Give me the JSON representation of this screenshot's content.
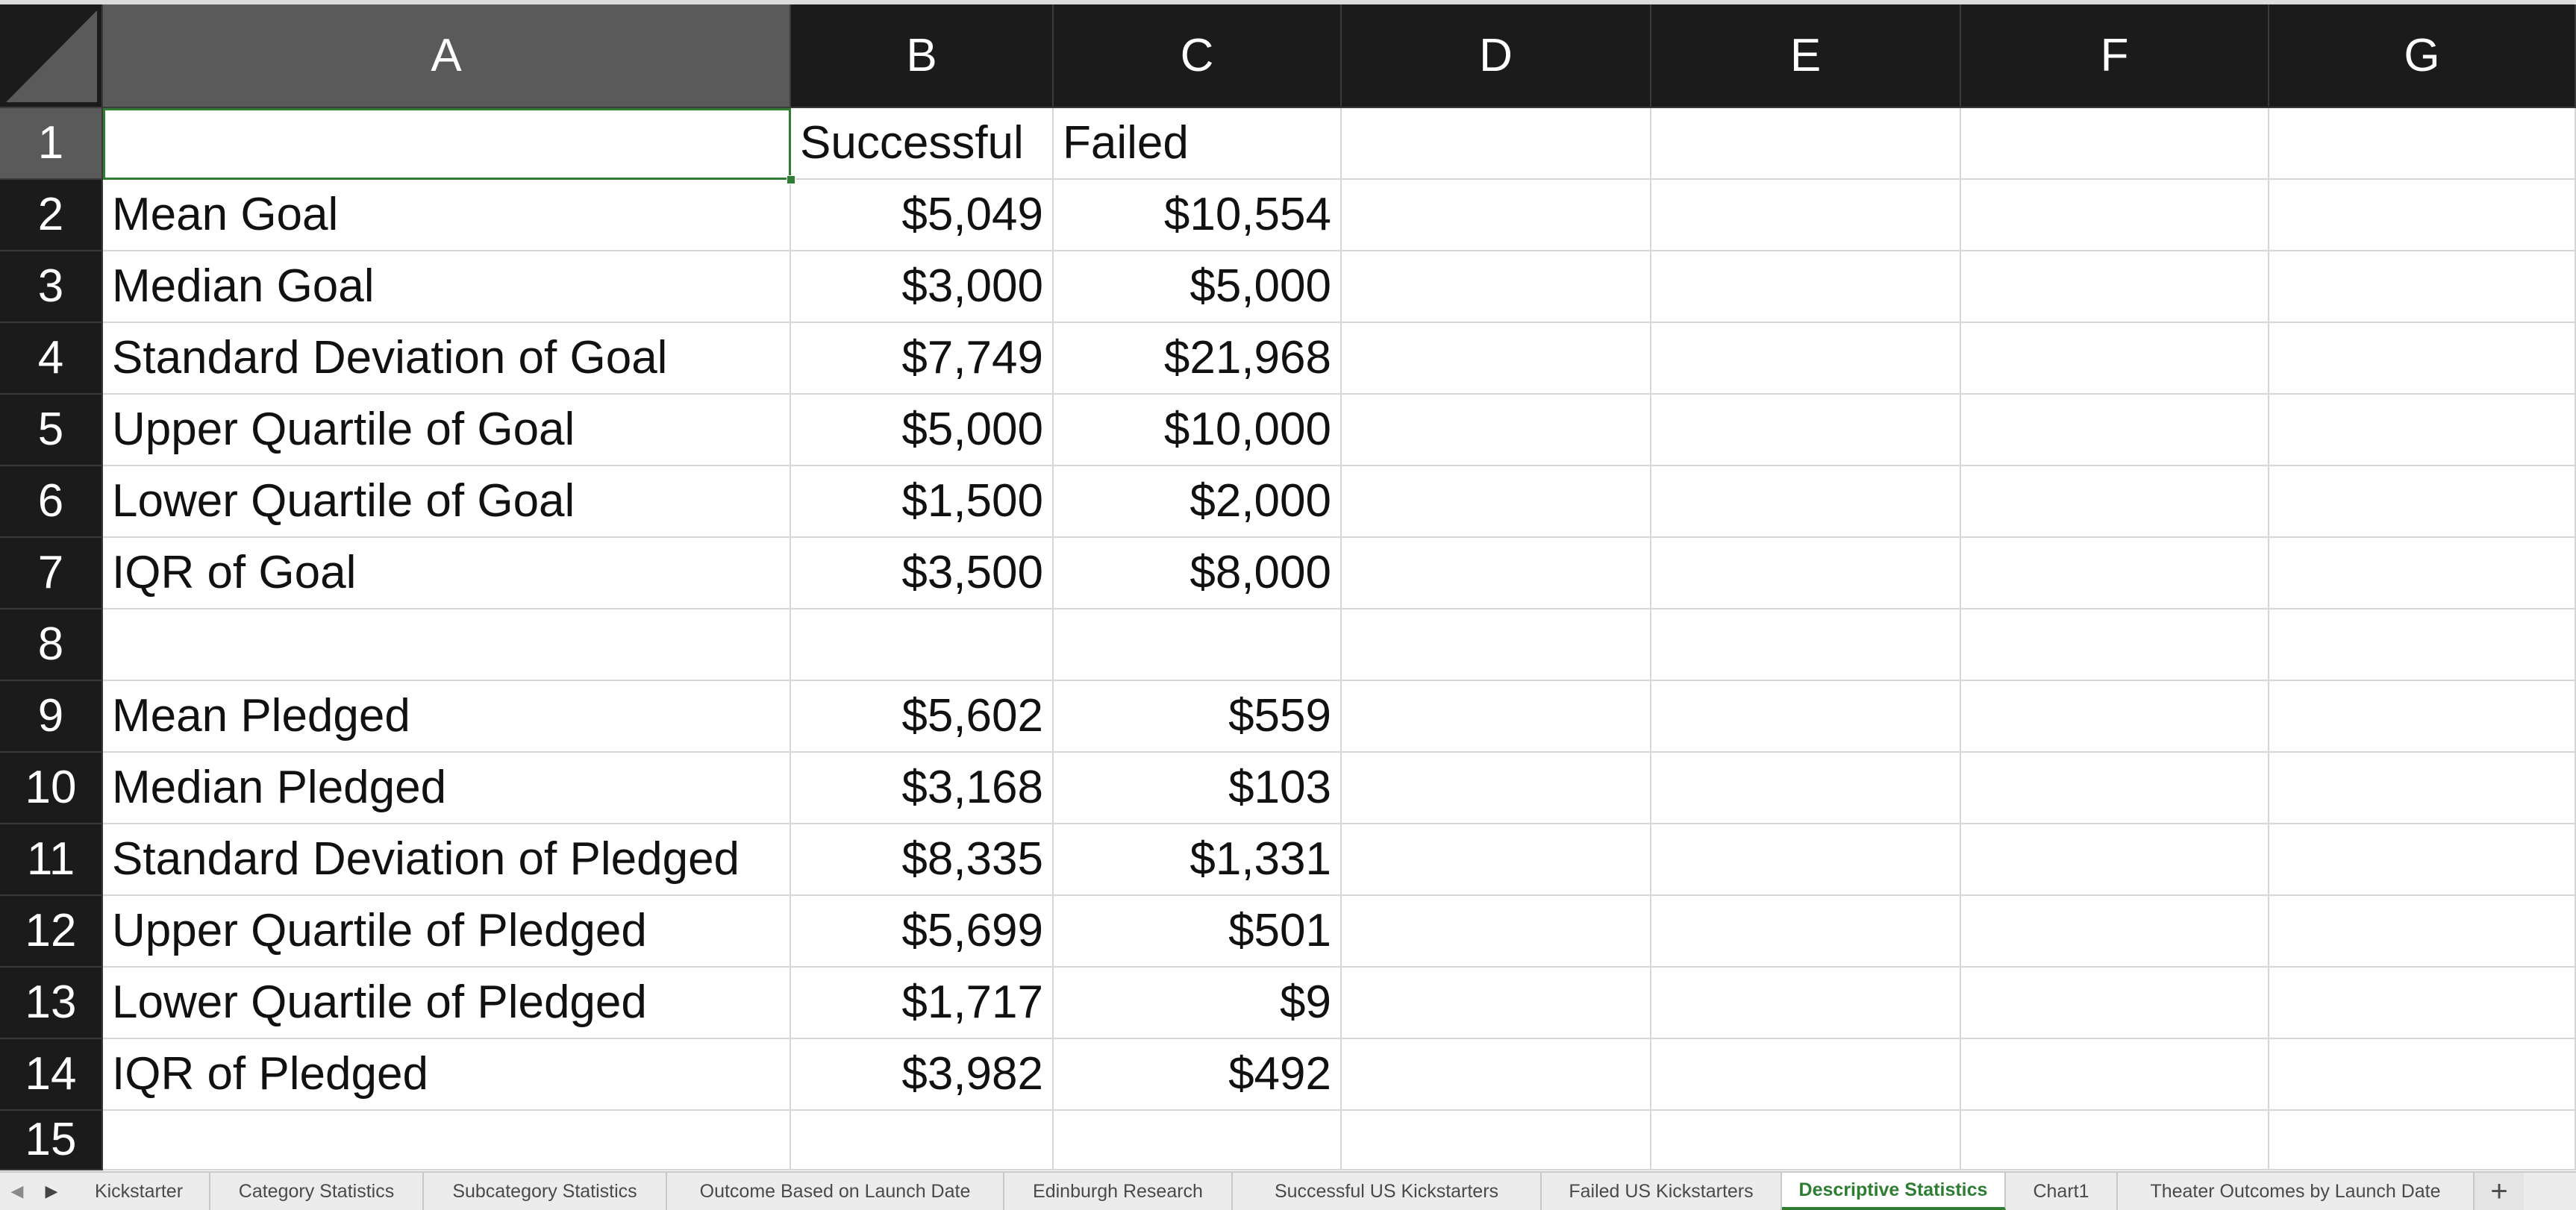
{
  "columns": [
    "A",
    "B",
    "C",
    "D",
    "E",
    "F",
    "G"
  ],
  "rows": [
    {
      "num": "1",
      "a": "",
      "b": "Successful",
      "c": "Failed"
    },
    {
      "num": "2",
      "a": "Mean Goal",
      "b": "$5,049",
      "c": "$10,554"
    },
    {
      "num": "3",
      "a": "Median Goal",
      "b": "$3,000",
      "c": "$5,000"
    },
    {
      "num": "4",
      "a": "Standard Deviation of Goal",
      "b": "$7,749",
      "c": "$21,968"
    },
    {
      "num": "5",
      "a": "Upper Quartile of Goal",
      "b": "$5,000",
      "c": "$10,000"
    },
    {
      "num": "6",
      "a": "Lower Quartile of Goal",
      "b": "$1,500",
      "c": "$2,000"
    },
    {
      "num": "7",
      "a": "IQR of Goal",
      "b": "$3,500",
      "c": "$8,000"
    },
    {
      "num": "8",
      "a": "",
      "b": "",
      "c": ""
    },
    {
      "num": "9",
      "a": "Mean Pledged",
      "b": "$5,602",
      "c": "$559"
    },
    {
      "num": "10",
      "a": "Median Pledged",
      "b": "$3,168",
      "c": "$103"
    },
    {
      "num": "11",
      "a": "Standard Deviation of Pledged",
      "b": "$8,335",
      "c": "$1,331"
    },
    {
      "num": "12",
      "a": "Upper Quartile of Pledged",
      "b": "$5,699",
      "c": "$501"
    },
    {
      "num": "13",
      "a": "Lower Quartile of Pledged",
      "b": "$1,717",
      "c": "$9"
    },
    {
      "num": "14",
      "a": "IQR of Pledged",
      "b": "$3,982",
      "c": "$492"
    },
    {
      "num": "15",
      "a": "",
      "b": "",
      "c": ""
    }
  ],
  "selection": {
    "column": "A",
    "row": "1"
  },
  "sheet_tabs": [
    {
      "label": "Kickstarter",
      "active": false
    },
    {
      "label": "Category Statistics",
      "active": false
    },
    {
      "label": "Subcategory Statistics",
      "active": false
    },
    {
      "label": "Outcome Based on Launch Date",
      "active": false
    },
    {
      "label": "Edinburgh Research",
      "active": false
    },
    {
      "label": "Successful US Kickstarters",
      "active": false
    },
    {
      "label": "Failed US Kickstarters",
      "active": false
    },
    {
      "label": "Descriptive Statistics",
      "active": true
    },
    {
      "label": "Chart1",
      "active": false
    },
    {
      "label": "Theater Outcomes by Launch Date",
      "active": false
    }
  ],
  "tab_nav": {
    "prev_icon": "◀",
    "next_icon": "▶",
    "add_label": "+"
  },
  "colors": {
    "header_bg": "#1b1b1b",
    "selected_header_bg": "#5a5a5a",
    "accent": "#2e7d32"
  }
}
